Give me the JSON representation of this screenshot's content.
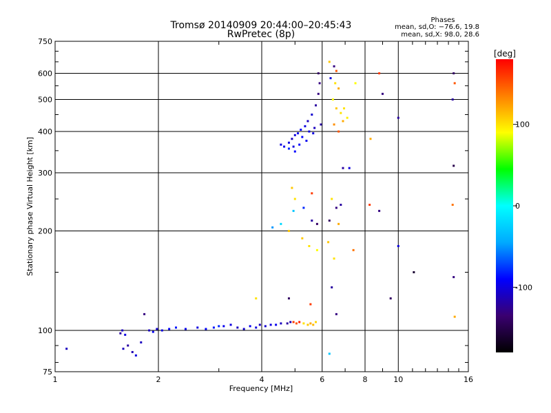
{
  "chart_data": {
    "type": "scatter",
    "title": "Tromsø 20140909 20:44:00–20:45:43",
    "subtitle": "RwPretec (8p)",
    "xlabel": "Frequency [MHz]",
    "ylabel": "Stationary phase Virtual Height [km]",
    "x_scale": "log",
    "y_scale": "log",
    "xlim": [
      1,
      16
    ],
    "ylim": [
      75,
      750
    ],
    "x_ticks": [
      1,
      2,
      4,
      6,
      8,
      10,
      16
    ],
    "y_ticks": [
      75,
      100,
      200,
      300,
      400,
      500,
      600,
      750
    ],
    "grid": true,
    "phases": {
      "title": "Phases",
      "line_o": "mean, sd,O: −76.6, 19.8",
      "line_x": "mean, sd,X:  98.0, 28.6"
    },
    "colorbar": {
      "label": "[deg]",
      "ticks": [
        100,
        0,
        -100
      ],
      "range": [
        -180,
        180
      ],
      "colors": [
        "#000000",
        "#3a0070",
        "#0000ff",
        "#00aaff",
        "#00ffff",
        "#00ff00",
        "#ffff00",
        "#ff8000",
        "#ff0000"
      ]
    },
    "series": [
      {
        "points": [
          [
            1.08,
            88,
            -110
          ],
          [
            1.55,
            98,
            -120
          ],
          [
            1.57,
            100,
            -110
          ],
          [
            1.6,
            97,
            -100
          ],
          [
            1.58,
            88,
            -110
          ],
          [
            1.63,
            90,
            -120
          ],
          [
            1.68,
            86,
            -115
          ],
          [
            1.72,
            84,
            -100
          ],
          [
            1.78,
            92,
            -110
          ],
          [
            1.82,
            112,
            -130
          ],
          [
            1.88,
            100,
            -110
          ],
          [
            1.93,
            99,
            -95
          ],
          [
            1.98,
            101,
            -105
          ],
          [
            2.05,
            100,
            -100
          ],
          [
            2.15,
            101,
            -90
          ],
          [
            2.25,
            102,
            -85
          ],
          [
            2.4,
            101,
            -95
          ],
          [
            2.6,
            102,
            -100
          ],
          [
            2.75,
            101,
            -90
          ],
          [
            2.9,
            102,
            -85
          ],
          [
            3.0,
            103,
            -80
          ],
          [
            3.1,
            103,
            -95
          ],
          [
            3.25,
            104,
            -100
          ],
          [
            3.4,
            102,
            -110
          ],
          [
            3.55,
            101,
            -105
          ],
          [
            3.7,
            103,
            -95
          ],
          [
            3.85,
            102,
            -100
          ],
          [
            3.95,
            104,
            -110
          ],
          [
            4.1,
            103,
            -105
          ],
          [
            4.25,
            104,
            -100
          ],
          [
            4.4,
            104,
            -95
          ],
          [
            4.55,
            105,
            -110
          ],
          [
            4.75,
            105,
            -120
          ],
          [
            4.85,
            106,
            -115
          ],
          [
            4.95,
            106,
            160
          ],
          [
            5.05,
            105,
            150
          ],
          [
            5.15,
            106,
            170
          ],
          [
            5.3,
            105,
            100
          ],
          [
            5.45,
            104,
            110
          ],
          [
            5.55,
            105,
            120
          ],
          [
            5.65,
            104,
            115
          ],
          [
            5.75,
            106,
            105
          ],
          [
            4.55,
            365,
            -100
          ],
          [
            4.65,
            360,
            -95
          ],
          [
            4.8,
            370,
            -100
          ],
          [
            4.9,
            380,
            -110
          ],
          [
            5.0,
            390,
            -100
          ],
          [
            5.1,
            395,
            -95
          ],
          [
            5.2,
            405,
            -90
          ],
          [
            5.35,
            415,
            -100
          ],
          [
            5.45,
            430,
            -110
          ],
          [
            5.6,
            450,
            -105
          ],
          [
            5.75,
            480,
            -120
          ],
          [
            5.85,
            520,
            -130
          ],
          [
            5.9,
            560,
            -130
          ],
          [
            5.85,
            600,
            -140
          ],
          [
            5.95,
            420,
            -120
          ],
          [
            5.65,
            395,
            -100
          ],
          [
            5.4,
            375,
            -95
          ],
          [
            5.15,
            365,
            -90
          ],
          [
            4.95,
            360,
            -100
          ],
          [
            5.25,
            385,
            -90
          ],
          [
            5.5,
            400,
            -100
          ],
          [
            5.7,
            410,
            -110
          ],
          [
            4.8,
            355,
            -80
          ],
          [
            5.0,
            348,
            -90
          ],
          [
            6.3,
            650,
            110
          ],
          [
            6.5,
            630,
            -130
          ],
          [
            6.6,
            610,
            150
          ],
          [
            6.35,
            580,
            -100
          ],
          [
            6.55,
            560,
            100
          ],
          [
            6.7,
            540,
            120
          ],
          [
            6.45,
            500,
            90
          ],
          [
            6.6,
            470,
            110
          ],
          [
            6.8,
            455,
            100
          ],
          [
            6.9,
            430,
            120
          ],
          [
            6.5,
            420,
            130
          ],
          [
            6.7,
            400,
            150
          ],
          [
            6.95,
            470,
            100
          ],
          [
            7.1,
            440,
            95
          ],
          [
            7.5,
            560,
            90
          ],
          [
            8.3,
            380,
            120
          ],
          [
            8.8,
            600,
            160
          ],
          [
            9.0,
            520,
            -130
          ],
          [
            10.0,
            440,
            -120
          ],
          [
            14.5,
            600,
            -140
          ],
          [
            14.6,
            560,
            150
          ],
          [
            14.4,
            500,
            -120
          ],
          [
            14.5,
            315,
            -150
          ],
          [
            14.4,
            240,
            140
          ],
          [
            4.9,
            270,
            110
          ],
          [
            5.0,
            250,
            100
          ],
          [
            4.95,
            230,
            -30
          ],
          [
            5.3,
            235,
            -80
          ],
          [
            5.6,
            215,
            -120
          ],
          [
            5.8,
            210,
            -140
          ],
          [
            5.6,
            260,
            160
          ],
          [
            6.4,
            250,
            100
          ],
          [
            6.6,
            235,
            -130
          ],
          [
            6.8,
            240,
            -120
          ],
          [
            6.3,
            215,
            -140
          ],
          [
            6.7,
            210,
            120
          ],
          [
            4.3,
            205,
            -50
          ],
          [
            4.55,
            210,
            -20
          ],
          [
            4.8,
            200,
            110
          ],
          [
            5.25,
            190,
            110
          ],
          [
            5.5,
            180,
            100
          ],
          [
            5.8,
            175,
            90
          ],
          [
            6.25,
            185,
            110
          ],
          [
            6.5,
            165,
            100
          ],
          [
            7.4,
            175,
            140
          ],
          [
            8.25,
            240,
            160
          ],
          [
            8.8,
            230,
            -130
          ],
          [
            9.5,
            125,
            -140
          ],
          [
            10.0,
            180,
            -100
          ],
          [
            11.1,
            150,
            -160
          ],
          [
            14.5,
            145,
            -130
          ],
          [
            14.6,
            110,
            120
          ],
          [
            4.8,
            125,
            -140
          ],
          [
            5.55,
            120,
            160
          ],
          [
            6.4,
            135,
            -120
          ],
          [
            6.6,
            112,
            -130
          ],
          [
            6.3,
            85,
            -30
          ],
          [
            6.9,
            310,
            -120
          ],
          [
            7.2,
            310,
            -100
          ],
          [
            3.85,
            125,
            100
          ]
        ]
      }
    ]
  }
}
